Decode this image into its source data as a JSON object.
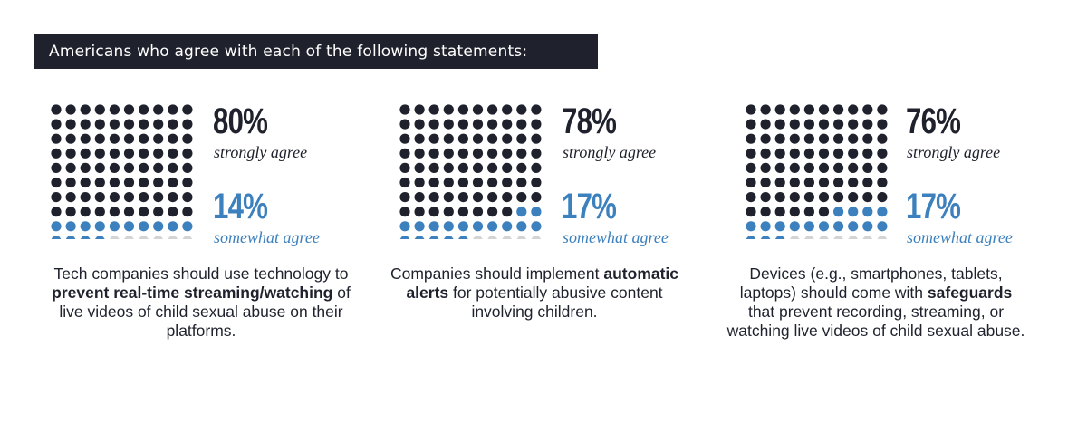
{
  "header": {
    "title": "Americans who agree with each of the following statements:"
  },
  "colors": {
    "strong": "#1f222d",
    "somewhat": "#3c80bd",
    "rest": "#d4d4d4"
  },
  "chart_data": [
    {
      "type": "waffle",
      "strongly_agree": 80,
      "somewhat_agree": 14,
      "strongly_label": "80%",
      "strongly_text": "strongly agree",
      "somewhat_label": "14%",
      "somewhat_text": "somewhat agree",
      "desc_pre": "Tech companies should use technology to ",
      "desc_bold": "prevent real-time streaming/watching",
      "desc_post": " of live videos of child sexual abuse on their platforms."
    },
    {
      "type": "waffle",
      "strongly_agree": 78,
      "somewhat_agree": 17,
      "strongly_label": "78%",
      "strongly_text": "strongly agree",
      "somewhat_label": "17%",
      "somewhat_text": "somewhat agree",
      "desc_pre": "Companies should implement ",
      "desc_bold": "automatic alerts",
      "desc_post": " for potentially abusive content involving children."
    },
    {
      "type": "waffle",
      "strongly_agree": 76,
      "somewhat_agree": 17,
      "strongly_label": "76%",
      "strongly_text": "strongly agree",
      "somewhat_label": "17%",
      "somewhat_text": "somewhat agree",
      "desc_pre": "Devices (e.g., smartphones, tablets, laptops) should come with ",
      "desc_bold": "safeguards",
      "desc_post": " that prevent recording, streaming, or watching live videos of child sexual abuse."
    }
  ]
}
